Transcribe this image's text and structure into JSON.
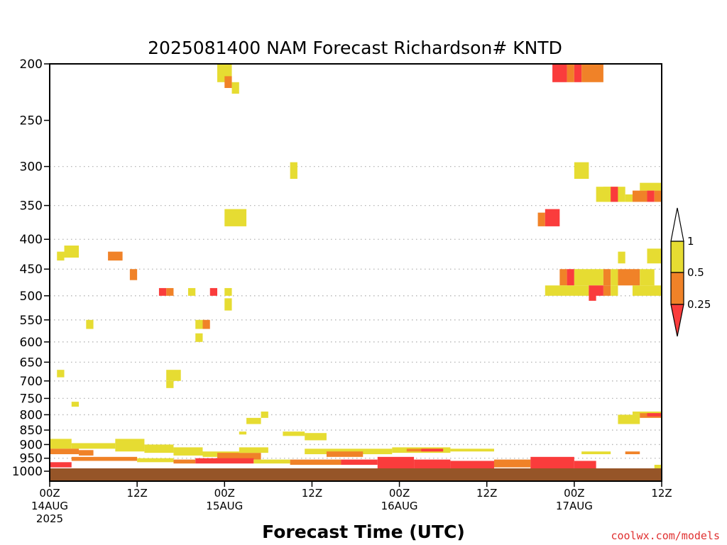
{
  "chart_data": {
    "type": "heatmap",
    "title": "2025081400 NAM Forecast Richardson# KNTD",
    "xlabel": "Forecast Time (UTC)",
    "ylabel": "",
    "y_scale": "log",
    "y_reversed": true,
    "xlim": [
      0,
      84
    ],
    "ylim": [
      200,
      1040
    ],
    "yticks": [
      200,
      250,
      300,
      350,
      400,
      450,
      500,
      550,
      600,
      650,
      700,
      750,
      800,
      850,
      900,
      950,
      1000
    ],
    "xticks": [
      {
        "hour": 0,
        "l1": "00Z",
        "l2": "14AUG",
        "l3": "2025"
      },
      {
        "hour": 12,
        "l1": "12Z",
        "l2": "",
        "l3": ""
      },
      {
        "hour": 24,
        "l1": "00Z",
        "l2": "15AUG",
        "l3": ""
      },
      {
        "hour": 36,
        "l1": "12Z",
        "l2": "",
        "l3": ""
      },
      {
        "hour": 48,
        "l1": "00Z",
        "l2": "16AUG",
        "l3": ""
      },
      {
        "hour": 60,
        "l1": "12Z",
        "l2": "",
        "l3": ""
      },
      {
        "hour": 72,
        "l1": "00Z",
        "l2": "17AUG",
        "l3": ""
      },
      {
        "hour": 84,
        "l1": "12Z",
        "l2": "",
        "l3": ""
      }
    ],
    "gridlines": [
      300,
      350,
      400,
      450,
      500,
      550,
      600,
      650,
      700,
      750,
      800,
      850,
      900,
      950
    ],
    "grid": "dotted",
    "legend_position": "right",
    "colorbar": {
      "labels": [
        "1",
        "0.5",
        "0.25"
      ],
      "bins": [
        {
          "range": ">1",
          "color": "#ffffff"
        },
        {
          "range": "0.5-1",
          "color": "#e6dc32"
        },
        {
          "range": "0.25-0.5",
          "color": "#f08228"
        },
        {
          "range": "<0.25",
          "color": "#fa3c3c"
        }
      ]
    },
    "cell_class_key": {
      "y": "0.5-1",
      "o": "0.25-0.5",
      "r": "<0.25"
    },
    "cells": [
      {
        "t0": 23,
        "t1": 25,
        "p0": 200,
        "p1": 215,
        "c": "y"
      },
      {
        "t0": 24,
        "t1": 25,
        "p0": 210,
        "p1": 220,
        "c": "o"
      },
      {
        "t0": 25,
        "t1": 26,
        "p0": 215,
        "p1": 225,
        "c": "y"
      },
      {
        "t0": 69,
        "t1": 71,
        "p0": 200,
        "p1": 215,
        "c": "r"
      },
      {
        "t0": 71,
        "t1": 72,
        "p0": 200,
        "p1": 215,
        "c": "o"
      },
      {
        "t0": 72,
        "t1": 73,
        "p0": 200,
        "p1": 215,
        "c": "r"
      },
      {
        "t0": 73,
        "t1": 76,
        "p0": 200,
        "p1": 215,
        "c": "o"
      },
      {
        "t0": 33,
        "t1": 34,
        "p0": 295,
        "p1": 315,
        "c": "y"
      },
      {
        "t0": 72,
        "t1": 74,
        "p0": 295,
        "p1": 315,
        "c": "y"
      },
      {
        "t0": 75,
        "t1": 77,
        "p0": 325,
        "p1": 345,
        "c": "y"
      },
      {
        "t0": 76,
        "t1": 78,
        "p0": 325,
        "p1": 345,
        "c": "y"
      },
      {
        "t0": 77,
        "t1": 78,
        "p0": 325,
        "p1": 345,
        "c": "r"
      },
      {
        "t0": 78,
        "t1": 79,
        "p0": 325,
        "p1": 345,
        "c": "y"
      },
      {
        "t0": 79,
        "t1": 80,
        "p0": 335,
        "p1": 345,
        "c": "y"
      },
      {
        "t0": 80,
        "t1": 82,
        "p0": 330,
        "p1": 345,
        "c": "o"
      },
      {
        "t0": 81,
        "t1": 84,
        "p0": 320,
        "p1": 330,
        "c": "y"
      },
      {
        "t0": 82,
        "t1": 83,
        "p0": 330,
        "p1": 345,
        "c": "r"
      },
      {
        "t0": 83,
        "t1": 84,
        "p0": 330,
        "p1": 345,
        "c": "o"
      },
      {
        "t0": 24,
        "t1": 27,
        "p0": 355,
        "p1": 380,
        "c": "y"
      },
      {
        "t0": 67,
        "t1": 68,
        "p0": 360,
        "p1": 380,
        "c": "o"
      },
      {
        "t0": 68,
        "t1": 70,
        "p0": 355,
        "p1": 380,
        "c": "r"
      },
      {
        "t0": 1,
        "t1": 2,
        "p0": 420,
        "p1": 435,
        "c": "y"
      },
      {
        "t0": 2,
        "t1": 4,
        "p0": 410,
        "p1": 430,
        "c": "y"
      },
      {
        "t0": 8,
        "t1": 10,
        "p0": 420,
        "p1": 435,
        "c": "o"
      },
      {
        "t0": 11,
        "t1": 12,
        "p0": 450,
        "p1": 470,
        "c": "o"
      },
      {
        "t0": 78,
        "t1": 79,
        "p0": 420,
        "p1": 440,
        "c": "y"
      },
      {
        "t0": 82,
        "t1": 84,
        "p0": 415,
        "p1": 440,
        "c": "y"
      },
      {
        "t0": 70,
        "t1": 71,
        "p0": 450,
        "p1": 480,
        "c": "o"
      },
      {
        "t0": 71,
        "t1": 72,
        "p0": 450,
        "p1": 480,
        "c": "r"
      },
      {
        "t0": 72,
        "t1": 76,
        "p0": 450,
        "p1": 480,
        "c": "y"
      },
      {
        "t0": 76,
        "t1": 77,
        "p0": 450,
        "p1": 480,
        "c": "o"
      },
      {
        "t0": 77,
        "t1": 78,
        "p0": 450,
        "p1": 480,
        "c": "y"
      },
      {
        "t0": 78,
        "t1": 81,
        "p0": 450,
        "p1": 480,
        "c": "o"
      },
      {
        "t0": 81,
        "t1": 83,
        "p0": 450,
        "p1": 480,
        "c": "y"
      },
      {
        "t0": 68,
        "t1": 74,
        "p0": 480,
        "p1": 500,
        "c": "y"
      },
      {
        "t0": 74,
        "t1": 76,
        "p0": 480,
        "p1": 500,
        "c": "r"
      },
      {
        "t0": 76,
        "t1": 77,
        "p0": 480,
        "p1": 500,
        "c": "o"
      },
      {
        "t0": 77,
        "t1": 78,
        "p0": 480,
        "p1": 500,
        "c": "y"
      },
      {
        "t0": 80,
        "t1": 84,
        "p0": 480,
        "p1": 500,
        "c": "y"
      },
      {
        "t0": 74,
        "t1": 75,
        "p0": 490,
        "p1": 510,
        "c": "r"
      },
      {
        "t0": 15,
        "t1": 16,
        "p0": 485,
        "p1": 500,
        "c": "r"
      },
      {
        "t0": 16,
        "t1": 17,
        "p0": 485,
        "p1": 500,
        "c": "o"
      },
      {
        "t0": 19,
        "t1": 20,
        "p0": 485,
        "p1": 500,
        "c": "y"
      },
      {
        "t0": 22,
        "t1": 23,
        "p0": 485,
        "p1": 500,
        "c": "r"
      },
      {
        "t0": 24,
        "t1": 25,
        "p0": 485,
        "p1": 500,
        "c": "y"
      },
      {
        "t0": 24,
        "t1": 25,
        "p0": 505,
        "p1": 530,
        "c": "y"
      },
      {
        "t0": 5,
        "t1": 6,
        "p0": 550,
        "p1": 570,
        "c": "y"
      },
      {
        "t0": 20,
        "t1": 21,
        "p0": 550,
        "p1": 570,
        "c": "y"
      },
      {
        "t0": 21,
        "t1": 22,
        "p0": 550,
        "p1": 570,
        "c": "o"
      },
      {
        "t0": 20,
        "t1": 21,
        "p0": 580,
        "p1": 600,
        "c": "y"
      },
      {
        "t0": 1,
        "t1": 2,
        "p0": 670,
        "p1": 690,
        "c": "y"
      },
      {
        "t0": 16,
        "t1": 18,
        "p0": 670,
        "p1": 700,
        "c": "y"
      },
      {
        "t0": 16,
        "t1": 17,
        "p0": 700,
        "p1": 720,
        "c": "y"
      },
      {
        "t0": 3,
        "t1": 4,
        "p0": 760,
        "p1": 775,
        "c": "y"
      },
      {
        "t0": 27,
        "t1": 29,
        "p0": 810,
        "p1": 830,
        "c": "y"
      },
      {
        "t0": 29,
        "t1": 30,
        "p0": 790,
        "p1": 810,
        "c": "y"
      },
      {
        "t0": 26,
        "t1": 27,
        "p0": 855,
        "p1": 865,
        "c": "y"
      },
      {
        "t0": 32,
        "t1": 35,
        "p0": 855,
        "p1": 870,
        "c": "y"
      },
      {
        "t0": 35,
        "t1": 38,
        "p0": 860,
        "p1": 885,
        "c": "y"
      },
      {
        "t0": 78,
        "t1": 81,
        "p0": 800,
        "p1": 830,
        "c": "y"
      },
      {
        "t0": 80,
        "t1": 84,
        "p0": 790,
        "p1": 800,
        "c": "y"
      },
      {
        "t0": 81,
        "t1": 84,
        "p0": 795,
        "p1": 810,
        "c": "o"
      },
      {
        "t0": 82,
        "t1": 84,
        "p0": 795,
        "p1": 805,
        "c": "r"
      },
      {
        "t0": 0,
        "t1": 3,
        "p0": 880,
        "p1": 915,
        "c": "y"
      },
      {
        "t0": 3,
        "t1": 9,
        "p0": 895,
        "p1": 915,
        "c": "y"
      },
      {
        "t0": 9,
        "t1": 13,
        "p0": 880,
        "p1": 925,
        "c": "y"
      },
      {
        "t0": 13,
        "t1": 17,
        "p0": 900,
        "p1": 930,
        "c": "y"
      },
      {
        "t0": 17,
        "t1": 21,
        "p0": 910,
        "p1": 940,
        "c": "y"
      },
      {
        "t0": 0,
        "t1": 4,
        "p0": 915,
        "p1": 935,
        "c": "o"
      },
      {
        "t0": 4,
        "t1": 6,
        "p0": 920,
        "p1": 940,
        "c": "o"
      },
      {
        "t0": 21,
        "t1": 26,
        "p0": 925,
        "p1": 945,
        "c": "y"
      },
      {
        "t0": 23,
        "t1": 29,
        "p0": 930,
        "p1": 955,
        "c": "o"
      },
      {
        "t0": 26,
        "t1": 30,
        "p0": 910,
        "p1": 930,
        "c": "y"
      },
      {
        "t0": 35,
        "t1": 47,
        "p0": 915,
        "p1": 935,
        "c": "y"
      },
      {
        "t0": 38,
        "t1": 43,
        "p0": 925,
        "p1": 945,
        "c": "o"
      },
      {
        "t0": 47,
        "t1": 55,
        "p0": 910,
        "p1": 930,
        "c": "y"
      },
      {
        "t0": 49,
        "t1": 54,
        "p0": 915,
        "p1": 925,
        "c": "o"
      },
      {
        "t0": 51,
        "t1": 54,
        "p0": 915,
        "p1": 925,
        "c": "r"
      },
      {
        "t0": 55,
        "t1": 61,
        "p0": 915,
        "p1": 925,
        "c": "y"
      },
      {
        "t0": 73,
        "t1": 77,
        "p0": 925,
        "p1": 935,
        "c": "y"
      },
      {
        "t0": 79,
        "t1": 81,
        "p0": 925,
        "p1": 935,
        "c": "o"
      },
      {
        "t0": 3,
        "t1": 12,
        "p0": 945,
        "p1": 960,
        "c": "o"
      },
      {
        "t0": 12,
        "t1": 17,
        "p0": 950,
        "p1": 965,
        "c": "y"
      },
      {
        "t0": 17,
        "t1": 20,
        "p0": 955,
        "p1": 970,
        "c": "o"
      },
      {
        "t0": 20,
        "t1": 28,
        "p0": 950,
        "p1": 970,
        "c": "r"
      },
      {
        "t0": 28,
        "t1": 33,
        "p0": 955,
        "p1": 970,
        "c": "y"
      },
      {
        "t0": 33,
        "t1": 40,
        "p0": 955,
        "p1": 975,
        "c": "o"
      },
      {
        "t0": 40,
        "t1": 45,
        "p0": 955,
        "p1": 975,
        "c": "r"
      },
      {
        "t0": 45,
        "t1": 50,
        "p0": 945,
        "p1": 1000,
        "c": "r"
      },
      {
        "t0": 50,
        "t1": 55,
        "p0": 955,
        "p1": 995,
        "c": "r"
      },
      {
        "t0": 55,
        "t1": 61,
        "p0": 960,
        "p1": 990,
        "c": "r"
      },
      {
        "t0": 61,
        "t1": 66,
        "p0": 955,
        "p1": 985,
        "c": "o"
      },
      {
        "t0": 66,
        "t1": 72,
        "p0": 945,
        "p1": 990,
        "c": "r"
      },
      {
        "t0": 72,
        "t1": 75,
        "p0": 960,
        "p1": 990,
        "c": "r"
      },
      {
        "t0": 83,
        "t1": 84,
        "p0": 975,
        "p1": 990,
        "c": "y"
      },
      {
        "t0": 0,
        "t1": 3,
        "p0": 965,
        "p1": 985,
        "c": "r"
      }
    ]
  },
  "credit": "coolwx.com/models",
  "colors": {
    "frame": "#000000",
    "grid": "#b4b4b4",
    "ground": "#965528",
    "credit": "#e03030"
  }
}
